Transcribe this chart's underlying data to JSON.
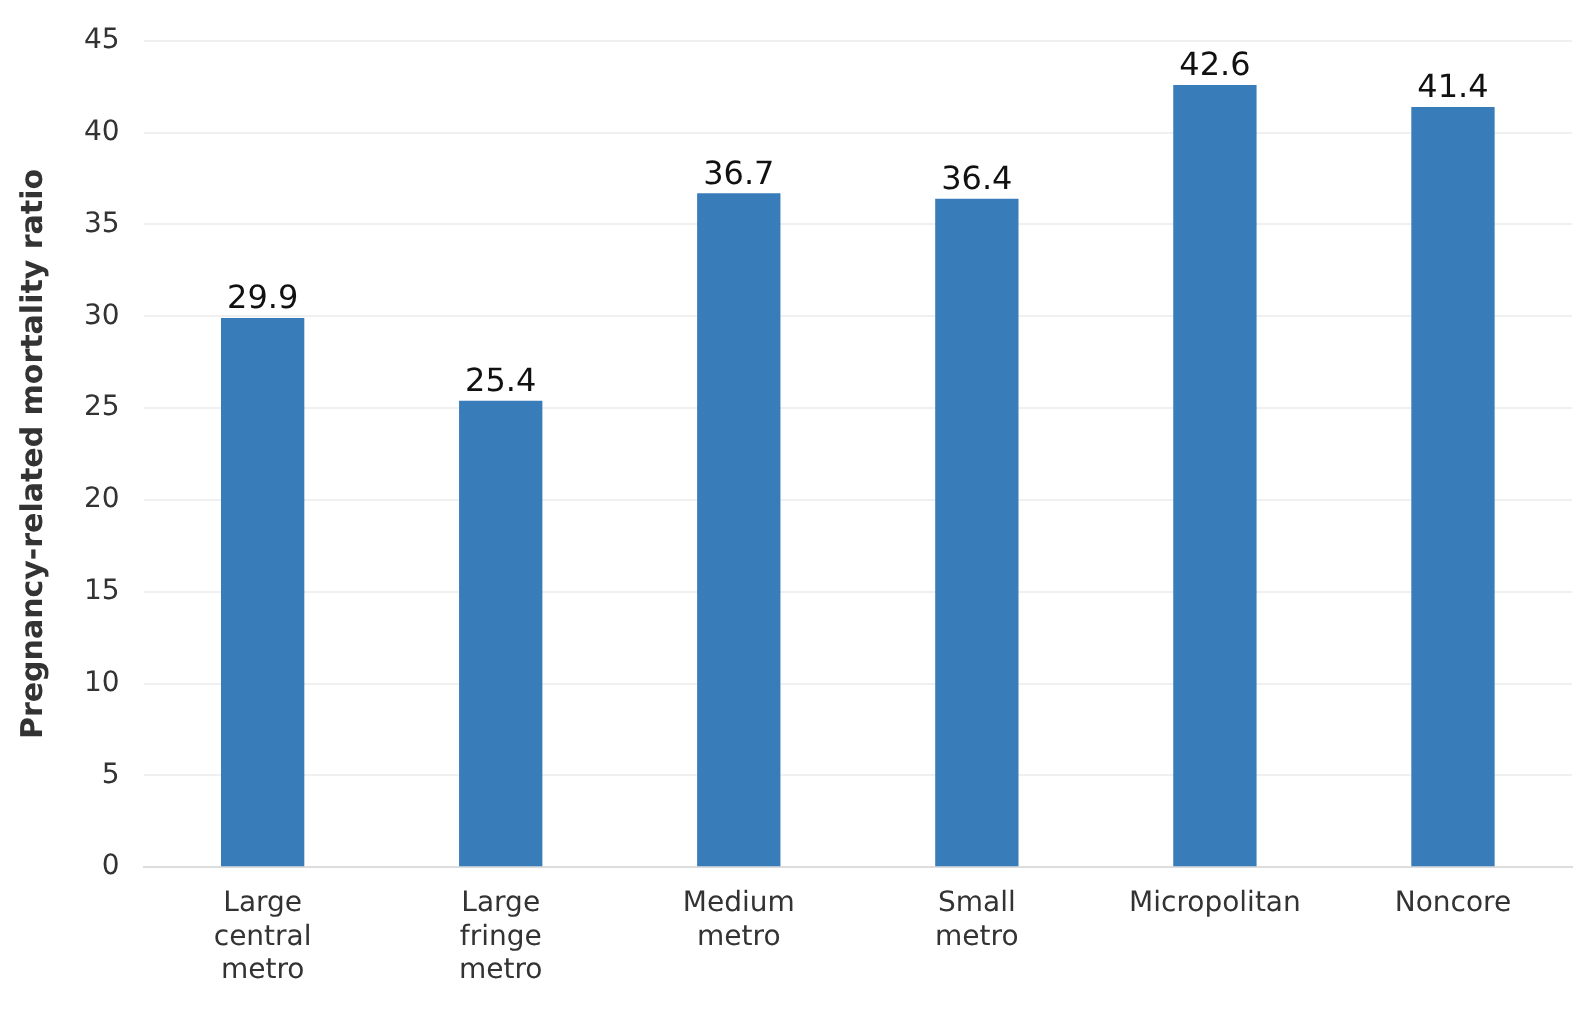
{
  "chart_data": {
    "type": "bar",
    "ylabel": "Pregnancy-related mortality ratio",
    "categories": [
      "Large central metro",
      "Large fringe metro",
      "Medium metro",
      "Small metro",
      "Micropolitan",
      "Noncore"
    ],
    "values": [
      29.9,
      25.4,
      36.7,
      36.4,
      42.6,
      41.4
    ],
    "color": "#387dba",
    "ylim": [
      0,
      45
    ],
    "yticks": [
      0,
      5,
      10,
      15,
      20,
      25,
      30,
      35,
      40,
      45
    ],
    "grid": "y",
    "data_labels": true
  }
}
